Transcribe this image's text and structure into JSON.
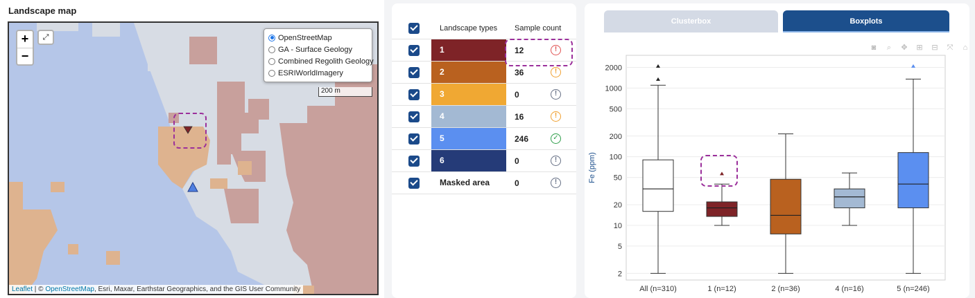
{
  "map": {
    "title": "Landscape map",
    "zoom_in": "+",
    "zoom_out": "−",
    "fullscreen": "⤢",
    "layers": [
      {
        "label": "OpenStreetMap",
        "selected": true
      },
      {
        "label": "GA - Surface Geology",
        "selected": false
      },
      {
        "label": "Combined Regolith Geology",
        "selected": false
      },
      {
        "label": "ESRIWorldImagery",
        "selected": false
      }
    ],
    "scale": "200 m",
    "attribution": {
      "leaflet": "Leaflet",
      "sep": " | © ",
      "osm": "OpenStreetMap",
      "rest": ", Esri, Maxar, Earthstar Geographics, and the GIS User Community"
    },
    "colors": {
      "water": "#b5c6e8",
      "land": "#d7dce4",
      "clay": "#c8a09c",
      "sand": "#deb38f"
    }
  },
  "table": {
    "header": {
      "types": "Landscape types",
      "count": "Sample count"
    },
    "rows": [
      {
        "label": "1",
        "color": "#7e2327",
        "count": "12",
        "status": "!",
        "status_color": "#e05252"
      },
      {
        "label": "2",
        "color": "#b9611f",
        "count": "36",
        "status": "!",
        "status_color": "#f0a030"
      },
      {
        "label": "3",
        "color": "#f0a833",
        "count": "0",
        "status": "!",
        "status_color": "#667085"
      },
      {
        "label": "4",
        "color": "#a3b9d3",
        "count": "16",
        "status": "!",
        "status_color": "#f0a030"
      },
      {
        "label": "5",
        "color": "#5b8ff0",
        "count": "246",
        "status": "✓",
        "status_color": "#2e9e4a"
      },
      {
        "label": "6",
        "color": "#253b78",
        "count": "0",
        "status": "!",
        "status_color": "#667085"
      },
      {
        "label": "Masked area",
        "color": "",
        "count": "0",
        "status": "!",
        "status_color": "#667085"
      }
    ]
  },
  "boxplot": {
    "tabs": {
      "inactive": "Clusterbox",
      "active": "Boxplots"
    },
    "toolbar": [
      "camera-icon",
      "zoom-icon",
      "pan-icon",
      "zoom-in-icon",
      "zoom-out-icon",
      "autoscale-icon",
      "home-icon"
    ]
  },
  "chart_data": {
    "type": "box",
    "ylabel": "Fe (ppm)",
    "yscale": "log",
    "ylim": [
      1.6,
      3000
    ],
    "yticks": [
      2,
      5,
      10,
      20,
      50,
      100,
      200,
      500,
      1000,
      2000
    ],
    "categories": [
      "All (n=310)",
      "1 (n=12)",
      "2 (n=36)",
      "4 (n=16)",
      "5 (n=246)"
    ],
    "boxes": [
      {
        "name": "All (n=310)",
        "color": "#ffffff",
        "min": 2,
        "q1": 16,
        "median": 34,
        "q3": 90,
        "max": 1100,
        "outliers": [
          1350,
          2100
        ]
      },
      {
        "name": "1 (n=12)",
        "color": "#7e2327",
        "min": 10,
        "q1": 13.5,
        "median": 18,
        "q3": 22,
        "max": 40,
        "outliers": [
          57
        ]
      },
      {
        "name": "2 (n=36)",
        "color": "#b9611f",
        "min": 2,
        "q1": 7.5,
        "median": 14,
        "q3": 47,
        "max": 215,
        "outliers": []
      },
      {
        "name": "4 (n=16)",
        "color": "#a3b9d3",
        "min": 10,
        "q1": 18,
        "median": 26,
        "q3": 34,
        "max": 58,
        "outliers": []
      },
      {
        "name": "5 (n=246)",
        "color": "#5b8ff0",
        "min": 2,
        "q1": 18,
        "median": 40,
        "q3": 115,
        "max": 1350,
        "outliers": [
          2100
        ]
      }
    ]
  }
}
